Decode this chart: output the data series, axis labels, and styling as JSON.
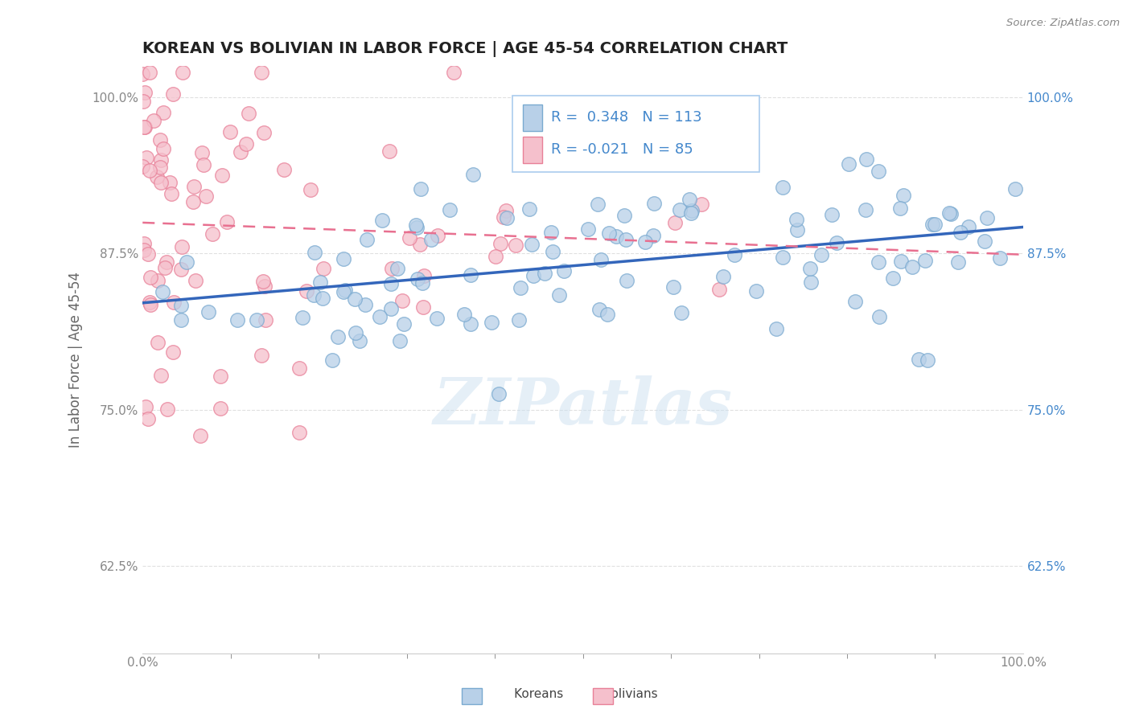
{
  "title": "KOREAN VS BOLIVIAN IN LABOR FORCE | AGE 45-54 CORRELATION CHART",
  "source_text": "Source: ZipAtlas.com",
  "ylabel": "In Labor Force | Age 45-54",
  "xlim": [
    0.0,
    1.0
  ],
  "ylim": [
    0.555,
    1.025
  ],
  "yticks": [
    0.625,
    0.75,
    0.875,
    1.0
  ],
  "ytick_labels": [
    "62.5%",
    "75.0%",
    "87.5%",
    "100.0%"
  ],
  "xtick_labels": [
    "0.0%",
    "100.0%"
  ],
  "xticks": [
    0.0,
    1.0
  ],
  "korean_R": 0.348,
  "korean_N": 113,
  "bolivian_R": -0.021,
  "bolivian_N": 85,
  "korean_color": "#b8d0e8",
  "korean_edge_color": "#7aaad0",
  "bolivian_color": "#f5c0cc",
  "bolivian_edge_color": "#e88098",
  "trend_korean_color": "#3366bb",
  "trend_bolivian_color": "#e87090",
  "background_color": "#ffffff",
  "grid_color": "#e0e0e0",
  "title_fontsize": 14,
  "axis_label_fontsize": 12,
  "tick_fontsize": 11,
  "legend_fontsize": 13,
  "right_tick_color": "#4488cc",
  "left_tick_color": "#888888"
}
